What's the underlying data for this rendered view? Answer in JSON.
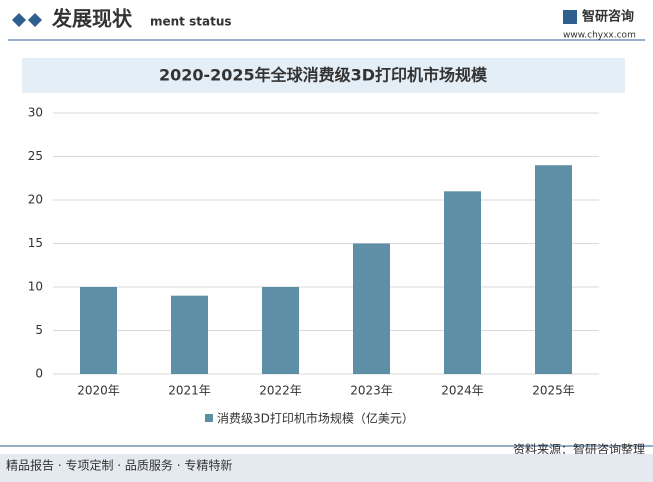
{
  "header": {
    "title": "发展现状",
    "ghost": "ment status",
    "brand": "智研咨询",
    "url": "www.chyxx.com"
  },
  "chart_data": {
    "type": "bar",
    "title": "2020-2025年全球消费级3D打印机市场规模",
    "categories": [
      "2020年",
      "2021年",
      "2022年",
      "2023年",
      "2024年",
      "2025年"
    ],
    "series": [
      {
        "name": "消费级3D打印机市场规模（亿美元）",
        "color": "#5f8fa7",
        "values": [
          10,
          9,
          10,
          15,
          21,
          24
        ]
      }
    ],
    "ylim": [
      0,
      30
    ],
    "yticks": [
      0,
      5,
      10,
      15,
      20,
      25,
      30
    ],
    "grid": true
  },
  "footer": {
    "source": "资料来源：智研咨询整理",
    "tagline": "精品报告 · 专项定制 · 品质服务 · 专精特新"
  }
}
